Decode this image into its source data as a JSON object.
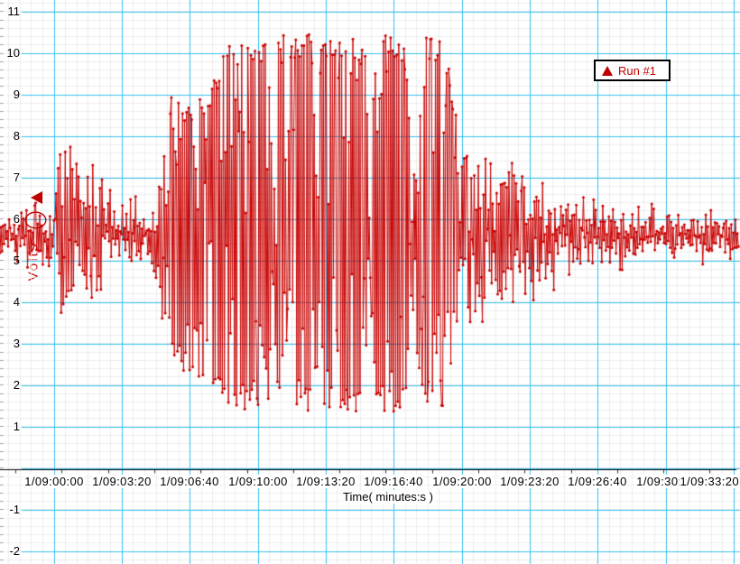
{
  "window": {
    "background": "#ffffff"
  },
  "chart_data": {
    "type": "line",
    "title": "",
    "xlabel": "Time( minutes:s )",
    "ylabel": "Volts",
    "x_tick_labels": [
      "1/09:00:00",
      "1/09:03:20",
      "1/09:06:40",
      "1/09:10:00",
      "1/09:13:20",
      "1/09:16:40",
      "1/09:20:00",
      "1/09:23:20",
      "1/09:26:40",
      "1/09:30:00",
      "1/09:33:20"
    ],
    "x_tick_interval_s": 200,
    "x_axis_note": "last tick label right-aligned, overlapping previous label",
    "y_ticks": [
      {
        "v": 11,
        "label": "11"
      },
      {
        "v": 10,
        "label": "10"
      },
      {
        "v": 9,
        "label": "9"
      },
      {
        "v": 8,
        "label": "8"
      },
      {
        "v": 7,
        "label": "7"
      },
      {
        "v": 6,
        "label": "6"
      },
      {
        "v": 5,
        "label": "5"
      },
      {
        "v": 4,
        "label": "4"
      },
      {
        "v": 3,
        "label": "3"
      },
      {
        "v": 2,
        "label": "2"
      },
      {
        "v": 1,
        "label": "1"
      },
      {
        "v": -1,
        "label": "-1"
      },
      {
        "v": -2,
        "label": "-2"
      }
    ],
    "ylim_visible": [
      -2.3,
      11.3
    ],
    "grid": {
      "major_color": "#35c0ee",
      "minor_color": "#ececec",
      "minors_per_major_x": 6,
      "minors_per_major_y": 5,
      "left_tick_color": "#a0a0a0"
    },
    "legend": {
      "position": "top-right",
      "entries": [
        {
          "label": "Run #1",
          "marker": "triangle",
          "color": "#c00000"
        }
      ]
    },
    "cursor": {
      "marker": "left-triangle",
      "color": "#c00000",
      "value_v": 6.5
    },
    "annotation_ellipse": {
      "color": "#c00000",
      "center_v": 5.95
    },
    "series": [
      {
        "name": "Run #1",
        "color": "#c80000",
        "marker": "dot",
        "units": "Volts",
        "baseline_v": 5.55,
        "clip_low_v": 1.3,
        "clip_high_v": 10.45,
        "sample_interval_s": 3,
        "t_start_s": -158,
        "t_end_s": 2014,
        "envelope_t_lo_hi": [
          [
            -158,
            5.0,
            6.15
          ],
          [
            -92,
            4.8,
            6.4
          ],
          [
            -38,
            4.4,
            6.7
          ],
          [
            1,
            4.3,
            6.9
          ],
          [
            28,
            3.6,
            8.1
          ],
          [
            49,
            3.6,
            8.1
          ],
          [
            81,
            4.2,
            7.2
          ],
          [
            123,
            3.6,
            7.6
          ],
          [
            155,
            4.3,
            7.1
          ],
          [
            200,
            4.5,
            6.8
          ],
          [
            253,
            4.6,
            6.6
          ],
          [
            299,
            4.4,
            6.8
          ],
          [
            325,
            3.4,
            7.8
          ],
          [
            352,
            2.6,
            9.25
          ],
          [
            386,
            2.2,
            8.7
          ],
          [
            421,
            1.9,
            8.9
          ],
          [
            458,
            2.3,
            9.1
          ],
          [
            487,
            1.7,
            9.6
          ],
          [
            511,
            1.3,
            10.45
          ],
          [
            630,
            1.3,
            10.45
          ],
          [
            644,
            3.9,
            7.4
          ],
          [
            660,
            1.3,
            10.45
          ],
          [
            758,
            1.3,
            10.45
          ],
          [
            771,
            2.5,
            8.8
          ],
          [
            787,
            1.3,
            10.45
          ],
          [
            914,
            1.3,
            10.45
          ],
          [
            930,
            4.1,
            7.2
          ],
          [
            949,
            1.3,
            10.45
          ],
          [
            1031,
            1.3,
            10.4
          ],
          [
            1052,
            3.2,
            7.8
          ],
          [
            1076,
            2.0,
            9.0
          ],
          [
            1095,
            1.5,
            10.4
          ],
          [
            1148,
            1.5,
            10.45
          ],
          [
            1177,
            2.8,
            8.8
          ],
          [
            1201,
            3.3,
            8.0
          ],
          [
            1249,
            3.5,
            7.7
          ],
          [
            1297,
            3.7,
            7.5
          ],
          [
            1342,
            4.0,
            7.4
          ],
          [
            1395,
            3.9,
            7.3
          ],
          [
            1461,
            4.0,
            7.1
          ],
          [
            1541,
            4.3,
            6.9
          ],
          [
            1607,
            4.5,
            6.75
          ],
          [
            1674,
            4.6,
            6.6
          ],
          [
            1753,
            4.8,
            6.45
          ],
          [
            1846,
            4.9,
            6.35
          ],
          [
            1939,
            4.95,
            6.3
          ],
          [
            2014,
            4.9,
            6.3
          ]
        ]
      }
    ]
  }
}
